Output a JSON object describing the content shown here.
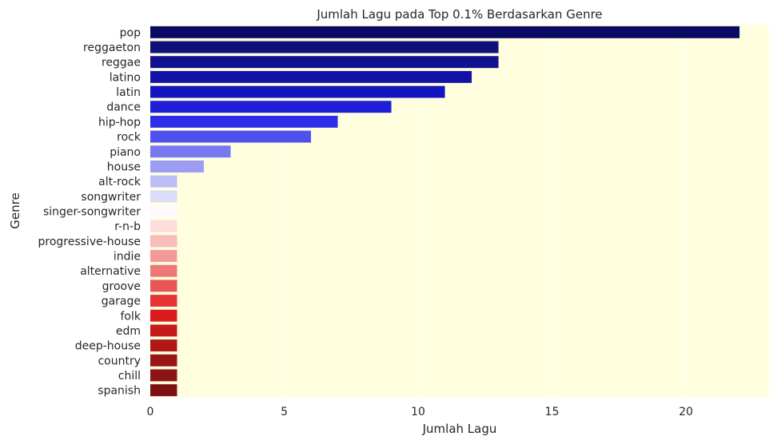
{
  "chart_data": {
    "type": "bar",
    "orientation": "horizontal",
    "title": "Jumlah Lagu pada Top 0.1% Berdasarkan Genre",
    "xlabel": "Jumlah Lagu",
    "ylabel": "Genre",
    "xlim": [
      0,
      23.1
    ],
    "xticks": [
      0,
      5,
      10,
      15,
      20
    ],
    "grid": true,
    "background_color": "#FFFFE0",
    "categories": [
      "pop",
      "reggaeton",
      "reggae",
      "latino",
      "latin",
      "dance",
      "hip-hop",
      "rock",
      "piano",
      "house",
      "alt-rock",
      "songwriter",
      "singer-songwriter",
      "r-n-b",
      "progressive-house",
      "indie",
      "alternative",
      "groove",
      "garage",
      "folk",
      "edm",
      "deep-house",
      "country",
      "chill",
      "spanish"
    ],
    "values": [
      22,
      13,
      13,
      12,
      11,
      9,
      7,
      6,
      3,
      2,
      1,
      1,
      1,
      1,
      1,
      1,
      1,
      1,
      1,
      1,
      1,
      1,
      1,
      1,
      1
    ],
    "colors": [
      "#0A0A62",
      "#10107A",
      "#121290",
      "#1212A8",
      "#1414BF",
      "#1E1ED9",
      "#2E2EEA",
      "#5050EE",
      "#7878F0",
      "#9C9CF4",
      "#BDBDF8",
      "#DCDCFB",
      "#FCF8FC",
      "#FCDCDC",
      "#F8BCBC",
      "#F29A9A",
      "#EE7878",
      "#EA5656",
      "#E63434",
      "#DC1C1C",
      "#C81A1A",
      "#B01818",
      "#9A1616",
      "#8C1414",
      "#7E1212"
    ]
  }
}
